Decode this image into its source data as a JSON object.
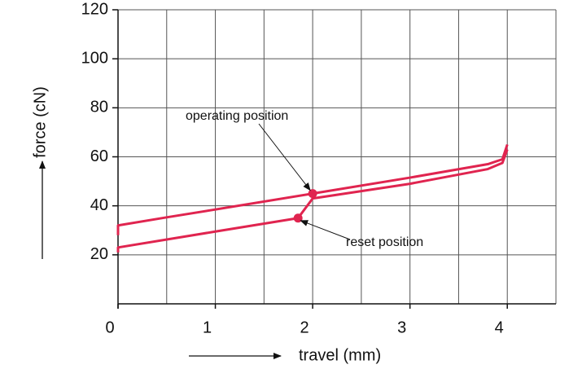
{
  "chart_data": {
    "type": "line",
    "xlabel": "travel (mm)",
    "ylabel": "force (cN)",
    "xlim": [
      0,
      4.5
    ],
    "ylim": [
      0,
      120
    ],
    "xticks": [
      0,
      1,
      2,
      3,
      4
    ],
    "yticks": [
      20,
      40,
      60,
      80,
      100,
      120
    ],
    "x_gridlines": [
      0,
      0.5,
      1,
      1.5,
      2,
      2.5,
      3,
      3.5,
      4,
      4.5
    ],
    "y_gridlines": [
      0,
      20,
      40,
      60,
      80,
      100,
      120
    ],
    "grid": true,
    "series": [
      {
        "color": "#e0244f",
        "x": [
          0,
          0,
          0.5,
          1,
          2,
          3,
          3.8,
          3.95,
          4.0
        ],
        "values": [
          28,
          32,
          35.3,
          38.5,
          45,
          51.5,
          57,
          59,
          65
        ]
      },
      {
        "color": "#e0244f",
        "x": [
          0,
          0,
          1,
          1.85,
          2.0,
          3,
          3.8,
          3.95,
          4.0
        ],
        "values": [
          21,
          23,
          29.5,
          35,
          43,
          49,
          55,
          57.5,
          63
        ]
      }
    ],
    "annotations": [
      {
        "text": "operating position",
        "x": 2,
        "y": 45
      },
      {
        "text": "reset position",
        "x": 1.85,
        "y": 35
      }
    ]
  }
}
